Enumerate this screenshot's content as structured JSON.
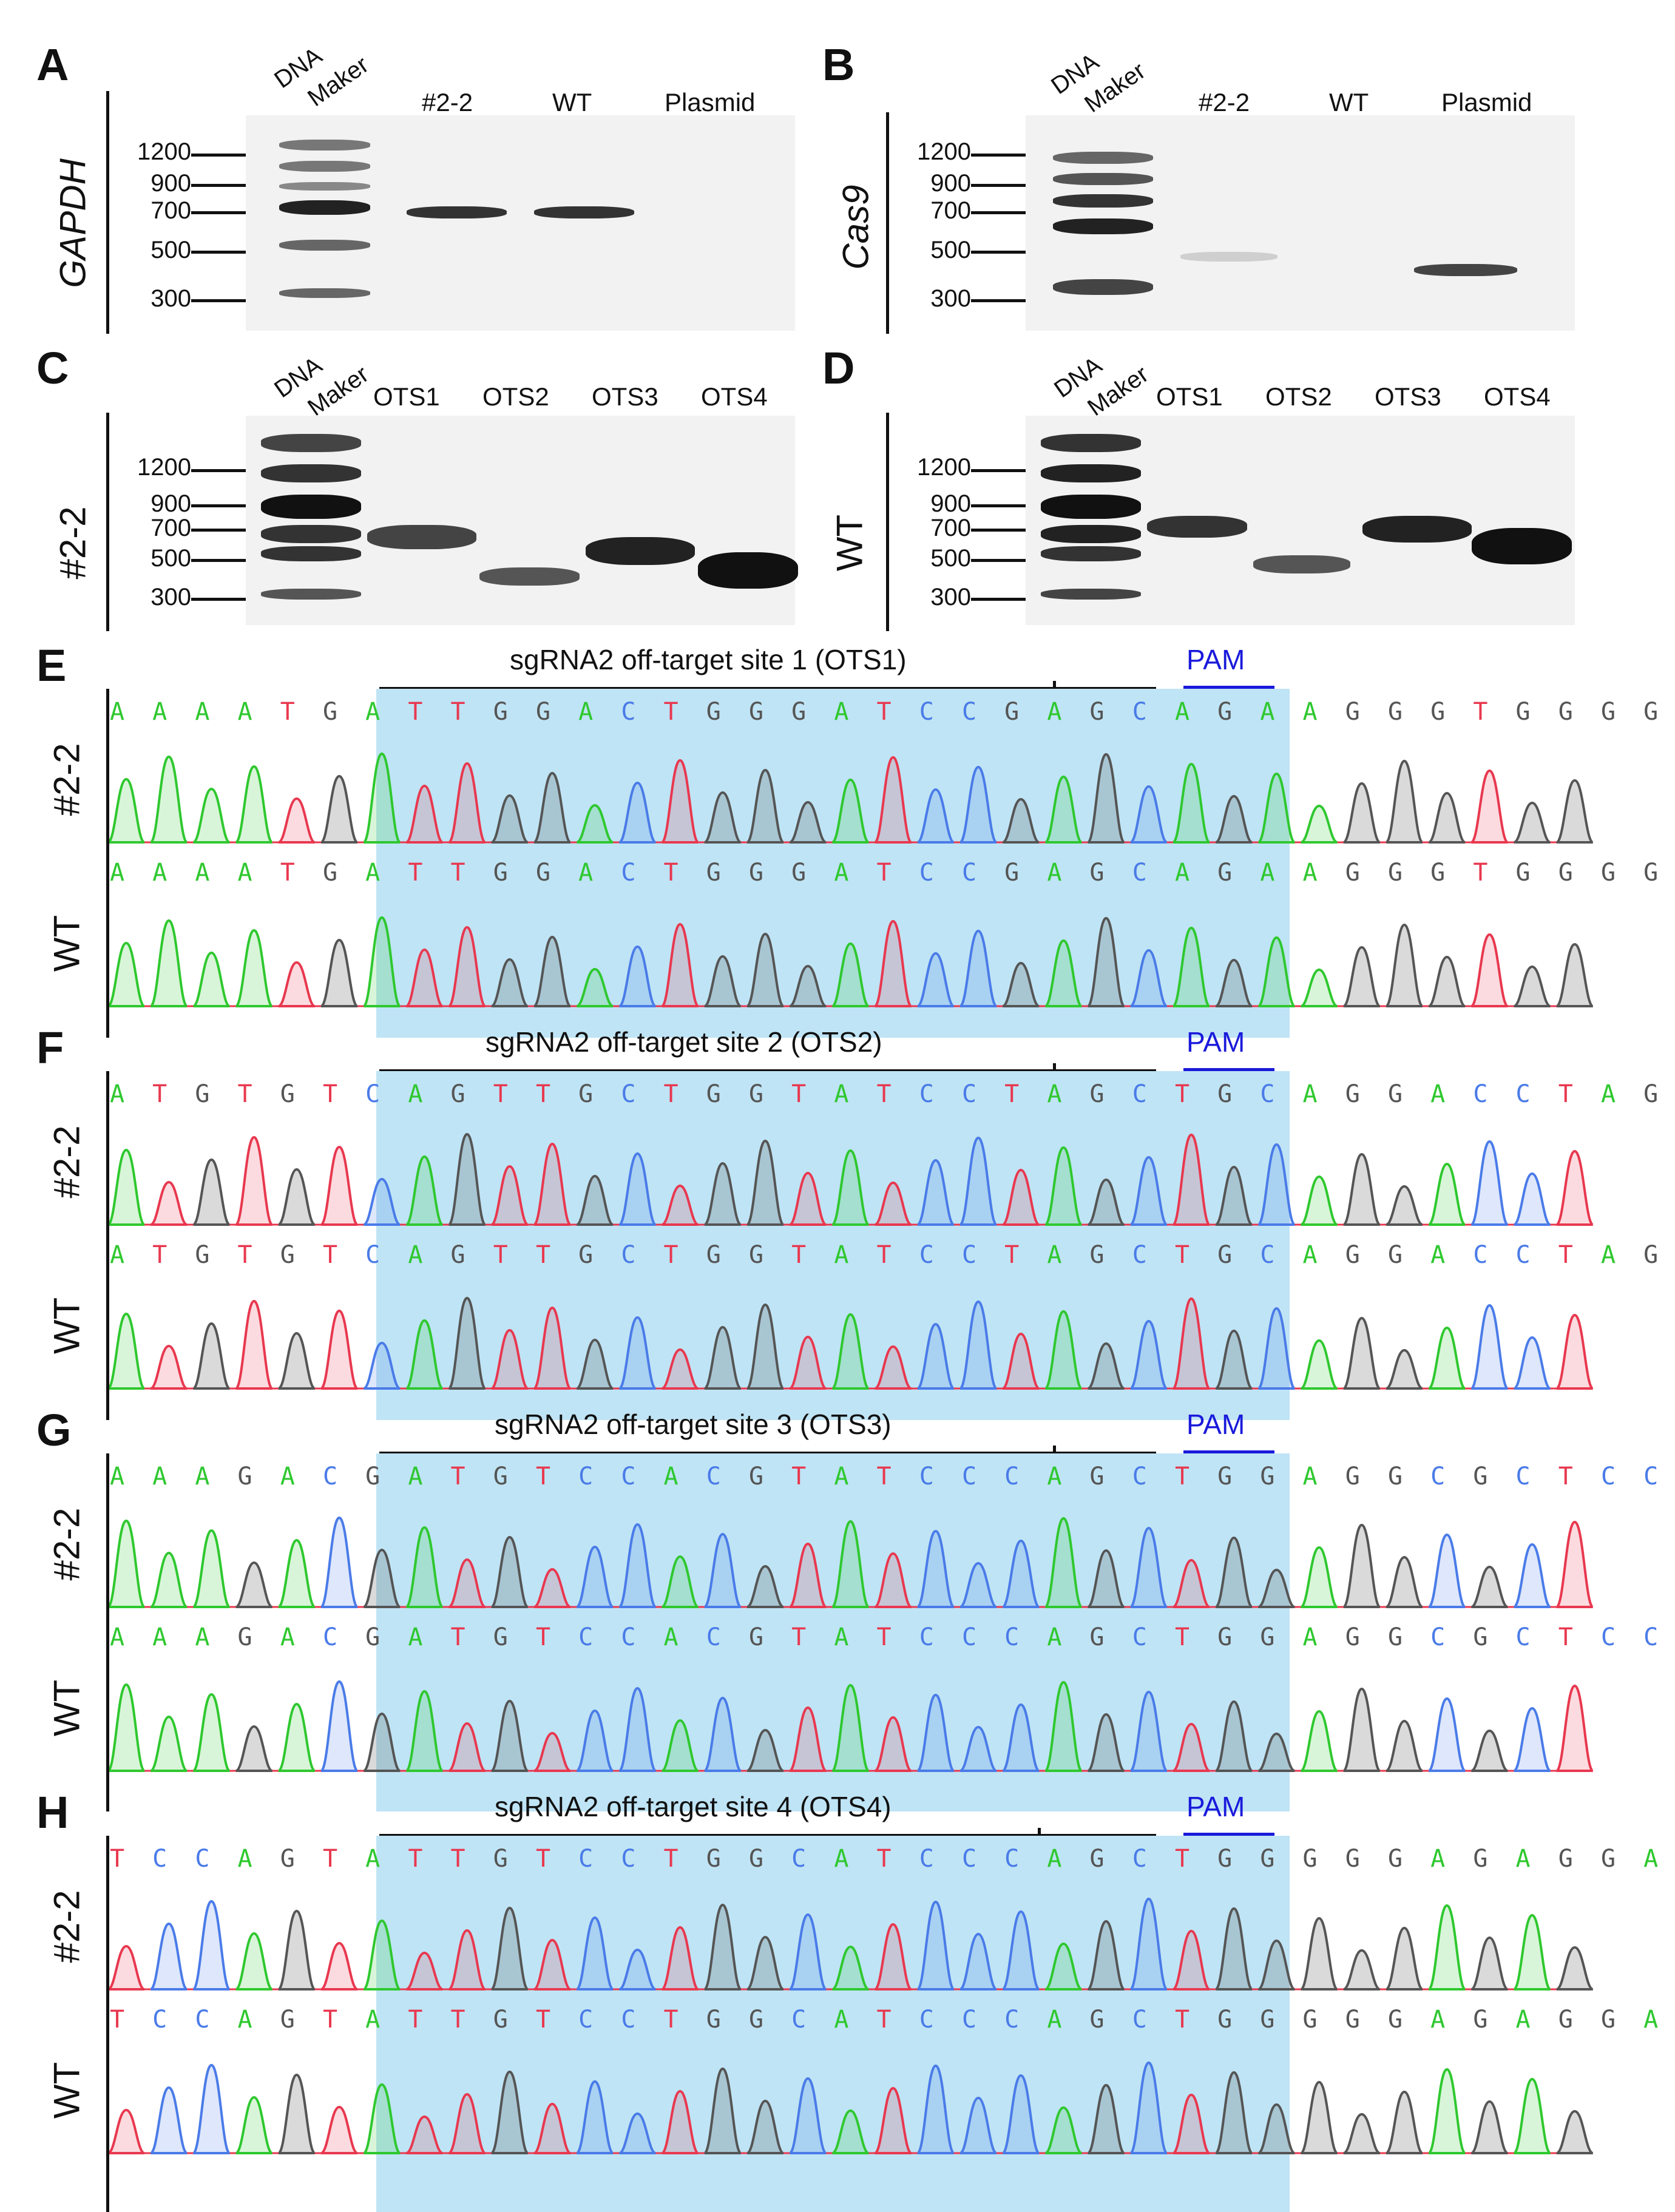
{
  "panels": {
    "A": {
      "letter": "A",
      "row_label": "GAPDH",
      "lanes": [
        "#2-2",
        "WT",
        "Plasmid"
      ],
      "marker_label": [
        "DNA",
        "Maker"
      ]
    },
    "B": {
      "letter": "B",
      "row_label": "Cas9",
      "lanes": [
        "#2-2",
        "WT",
        "Plasmid"
      ],
      "marker_label": [
        "DNA",
        "Maker"
      ]
    },
    "C": {
      "letter": "C",
      "row_label": "#2-2",
      "lanes": [
        "OTS1",
        "OTS2",
        "OTS3",
        "OTS4"
      ],
      "marker_label": [
        "DNA",
        "Maker"
      ]
    },
    "D": {
      "letter": "D",
      "row_label": "WT",
      "lanes": [
        "OTS1",
        "OTS2",
        "OTS3",
        "OTS4"
      ],
      "marker_label": [
        "DNA",
        "Maker"
      ]
    },
    "E": {
      "letter": "E",
      "title": "sgRNA2 off-target site 1 (OTS1)",
      "pam": "PAM",
      "row1": "#2-2",
      "row2": "WT",
      "seq1": "AAAATGATTGGACTGGGATCCGAGCAGAAGGGTGGGG",
      "seq2": "AAAATGATTGGACTGGGATCCGAGCAGAAGGGTGGGG"
    },
    "F": {
      "letter": "F",
      "title": "sgRNA2 off-target site 2 (OTS2)",
      "pam": "PAM",
      "row1": "#2-2",
      "row2": "WT",
      "seq1": "ATGTGTCAGTTGCTGGTATCCTAGCTGCAGGACCTAG",
      "seq2": "ATGTGTCAGTTGCTGGTATCCTAGCTGCAGGACCTAG"
    },
    "G": {
      "letter": "G",
      "title": "sgRNA2 off-target site 3 (OTS3)",
      "pam": "PAM",
      "row1": "#2-2",
      "row2": "WT",
      "seq1": "AAAGACGATGTCCACGTATCCCAGCTGGAGGCGCTCC",
      "seq2": "AAAGACGATGTCCACGTATCCCAGCTGGAGGCGCTCC"
    },
    "H": {
      "letter": "H",
      "title": "sgRNA2 off-target site 4 (OTS4)",
      "pam": "PAM",
      "row1": "#2-2",
      "row2": "WT",
      "seq1": "TCCAGTATTGTCCTGGCATCCCAGCTGGGGGAGAGGA",
      "seq2": "TCCAGTATTGTCCTGGCATCCCAGCTGGGGGAGAGGA"
    }
  },
  "markers": [
    "1200",
    "900",
    "700",
    "500",
    "300"
  ]
}
